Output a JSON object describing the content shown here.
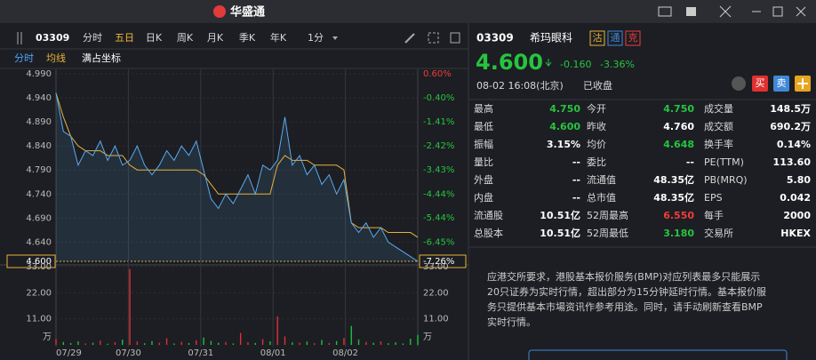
{
  "topbar": {
    "logo": "华盛通"
  },
  "toolbar": {
    "code": "03309",
    "periods": [
      "分时",
      "五日",
      "日K",
      "周K",
      "月K",
      "季K",
      "年K"
    ],
    "interval": "1分"
  },
  "subbar": {
    "items": [
      "分时",
      "均线",
      "满占坐标"
    ]
  },
  "chart": {
    "type": "line",
    "dates": [
      "07/29",
      "07/30",
      "07/31",
      "08/01",
      "08/02"
    ],
    "prices": [
      4.95,
      4.87,
      4.86,
      4.8,
      4.83,
      4.82,
      4.85,
      4.81,
      4.84,
      4.8,
      4.81,
      4.84,
      4.8,
      4.78,
      4.8,
      4.83,
      4.81,
      4.84,
      4.82,
      4.85,
      4.79,
      4.73,
      4.71,
      4.74,
      4.72,
      4.75,
      4.78,
      4.74,
      4.8,
      4.79,
      4.81,
      4.9,
      4.8,
      4.82,
      4.78,
      4.8,
      4.76,
      4.78,
      4.74,
      4.77,
      4.68,
      4.66,
      4.68,
      4.65,
      4.67,
      4.64,
      4.63,
      4.62,
      4.61,
      4.6
    ],
    "avg": [
      4.95,
      4.9,
      4.86,
      4.84,
      4.83,
      4.83,
      4.83,
      4.82,
      4.82,
      4.82,
      4.8,
      4.79,
      4.79,
      4.79,
      4.79,
      4.79,
      4.79,
      4.79,
      4.79,
      4.79,
      4.78,
      4.76,
      4.74,
      4.74,
      4.74,
      4.74,
      4.74,
      4.74,
      4.74,
      4.74,
      4.8,
      4.82,
      4.81,
      4.81,
      4.81,
      4.8,
      4.8,
      4.8,
      4.8,
      4.79,
      4.68,
      4.67,
      4.67,
      4.67,
      4.67,
      4.66,
      4.66,
      4.66,
      4.66,
      4.65
    ],
    "volumes": [
      2.5,
      1.2,
      0.8,
      1.5,
      0.6,
      0.9,
      1.8,
      0.5,
      1.1,
      2.2,
      32,
      1.4,
      0.7,
      1.6,
      0.9,
      2.8,
      0.6,
      1.3,
      0.8,
      1.9,
      3.1,
      1.7,
      0.9,
      1.2,
      0.6,
      5,
      1.1,
      0.8,
      2.4,
      1.5,
      12,
      3.6,
      1.1,
      0.9,
      1.4,
      0.7,
      2.1,
      0.8,
      1.6,
      2.9,
      8,
      2.3,
      1.2,
      0.9,
      1.5,
      0.7,
      1.1,
      0.6,
      2.6,
      4.2
    ],
    "price_color": "#5aa9f0",
    "avg_color": "#e8b339",
    "ylim": [
      4.6,
      4.99
    ],
    "yticks": [
      {
        "value": 4.99,
        "label": "4.990"
      },
      {
        "value": 4.94,
        "label": "4.940"
      },
      {
        "value": 4.89,
        "label": "4.890"
      },
      {
        "value": 4.84,
        "label": "4.840"
      },
      {
        "value": 4.79,
        "label": "4.790"
      },
      {
        "value": 4.74,
        "label": "4.740"
      },
      {
        "value": 4.69,
        "label": "4.690"
      },
      {
        "value": 4.64,
        "label": "4.640"
      }
    ],
    "y2lim": [
      -7.26,
      0.6
    ],
    "y2ticks": [
      {
        "value": 0.6,
        "label": "0.60%"
      },
      {
        "value": -0.4,
        "label": "-0.40%"
      },
      {
        "value": -1.41,
        "label": "-1.41%"
      },
      {
        "value": -2.42,
        "label": "-2.42%"
      },
      {
        "value": -3.43,
        "label": "-3.43%"
      },
      {
        "value": -4.44,
        "label": "-4.44%"
      },
      {
        "value": -5.44,
        "label": "-5.44%"
      },
      {
        "value": -6.45,
        "label": "-6.45%"
      }
    ],
    "current": {
      "value": 4.6,
      "label": "4.600"
    },
    "current_pct": {
      "value": -7.26,
      "label": "-7.26%"
    },
    "vlim": [
      0,
      33
    ],
    "vticks": [
      {
        "value": 33,
        "label": "33.00"
      },
      {
        "value": 22,
        "label": "22.00"
      },
      {
        "value": 11,
        "label": "11.00"
      }
    ],
    "vunit": "万"
  },
  "quote": {
    "code": "03309",
    "name": "希玛眼科",
    "badges": [
      "沽",
      "通",
      "克"
    ],
    "price": "4.600",
    "change": "-0.160",
    "change_pct": "-3.36%",
    "time": "08-02 16:08(北京)",
    "status": "已收盘",
    "buttons": [
      "买",
      "卖"
    ],
    "rows": [
      [
        {
          "label": "最高",
          "value": "4.750",
          "color": "#27c43f"
        },
        {
          "label": "今开",
          "value": "4.750",
          "color": "#27c43f"
        },
        {
          "label": "成交量",
          "value": "148.5万",
          "color": "#ffffff"
        }
      ],
      [
        {
          "label": "最低",
          "value": "4.600",
          "color": "#27c43f"
        },
        {
          "label": "昨收",
          "value": "4.760",
          "color": "#ffffff"
        },
        {
          "label": "成交额",
          "value": "690.2万",
          "color": "#ffffff"
        }
      ],
      [
        {
          "label": "振幅",
          "value": "3.15%",
          "color": "#ffffff"
        },
        {
          "label": "均价",
          "value": "4.648",
          "color": "#27c43f"
        },
        {
          "label": "换手率",
          "value": "0.14%",
          "color": "#ffffff"
        }
      ],
      [
        {
          "label": "量比",
          "value": "--",
          "color": "#ffffff"
        },
        {
          "label": "委比",
          "value": "--",
          "color": "#ffffff"
        },
        {
          "label": "PE(TTM)",
          "value": "113.60",
          "color": "#ffffff"
        }
      ],
      [
        {
          "label": "外盘",
          "value": "--",
          "color": "#ffffff"
        },
        {
          "label": "流通值",
          "value": "48.35亿",
          "color": "#ffffff"
        },
        {
          "label": "PB(MRQ)",
          "value": "5.80",
          "color": "#ffffff"
        }
      ],
      [
        {
          "label": "内盘",
          "value": "--",
          "color": "#ffffff"
        },
        {
          "label": "总市值",
          "value": "48.35亿",
          "color": "#ffffff"
        },
        {
          "label": "EPS",
          "value": "0.042",
          "color": "#ffffff"
        }
      ],
      [
        {
          "label": "流通股",
          "value": "10.51亿",
          "color": "#ffffff"
        },
        {
          "label": "52周最高",
          "value": "6.550",
          "color": "#f03c3c"
        },
        {
          "label": "每手",
          "value": "2000",
          "color": "#ffffff"
        }
      ],
      [
        {
          "label": "总股本",
          "value": "10.51亿",
          "color": "#ffffff"
        },
        {
          "label": "52周最低",
          "value": "3.180",
          "color": "#27c43f"
        },
        {
          "label": "交易所",
          "value": "HKEX",
          "color": "#ffffff"
        }
      ]
    ]
  },
  "notice": {
    "lines": [
      "应港交所要求，港股基本报价服务(BMP)对应列表最多只能展示",
      "20只证券为实时行情，超出部分为15分钟延时行情。基本报价服",
      "务只提供基本市場资讯作参考用途。同时，请手动刷新查看BMP",
      "实时行情。"
    ]
  }
}
